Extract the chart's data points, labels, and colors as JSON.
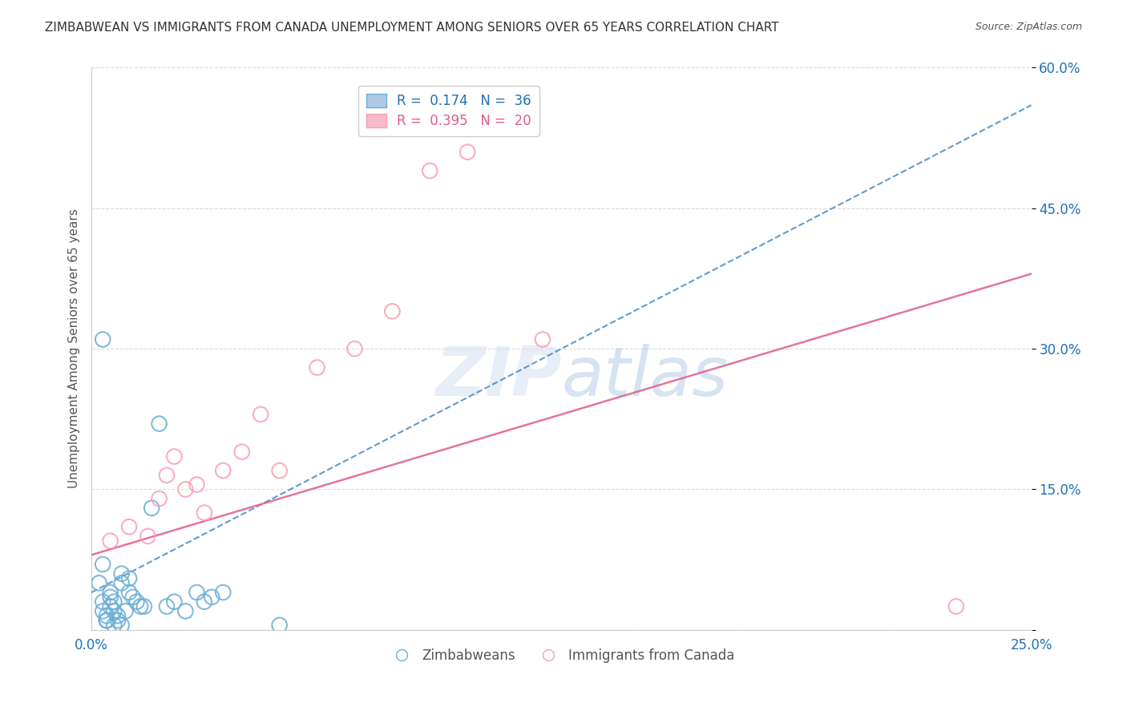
{
  "title": "ZIMBABWEAN VS IMMIGRANTS FROM CANADA UNEMPLOYMENT AMONG SENIORS OVER 65 YEARS CORRELATION CHART",
  "source": "Source: ZipAtlas.com",
  "xlabel": "",
  "ylabel": "Unemployment Among Seniors over 65 years",
  "xlim": [
    0.0,
    0.25
  ],
  "ylim": [
    0.0,
    0.6
  ],
  "xticks": [
    0.0,
    0.05,
    0.1,
    0.15,
    0.2,
    0.25
  ],
  "yticks": [
    0.0,
    0.15,
    0.3,
    0.45,
    0.6
  ],
  "xticklabels": [
    "0.0%",
    "",
    "",
    "",
    "",
    "25.0%"
  ],
  "yticklabels": [
    "",
    "15.0%",
    "30.0%",
    "45.0%",
    "60.0%"
  ],
  "legend1_label": "R =  0.174   N =  36",
  "legend2_label": "R =  0.395   N =  20",
  "R1": 0.174,
  "N1": 36,
  "R2": 0.395,
  "N2": 20,
  "blue_color": "#6baed6",
  "pink_color": "#fa9fb5",
  "blue_line_color": "#2171b5",
  "pink_line_color": "#e05c8a",
  "dashed_line_color": "#aaaaaa",
  "watermark": "ZIPatlas",
  "blue_scatter_x": [
    0.002,
    0.003,
    0.003,
    0.004,
    0.004,
    0.005,
    0.005,
    0.005,
    0.006,
    0.006,
    0.007,
    0.007,
    0.008,
    0.008,
    0.009,
    0.01,
    0.01,
    0.011,
    0.012,
    0.013,
    0.014,
    0.016,
    0.018,
    0.02,
    0.022,
    0.025,
    0.028,
    0.03,
    0.032,
    0.035,
    0.003,
    0.004,
    0.006,
    0.05,
    0.008,
    0.003
  ],
  "blue_scatter_y": [
    0.05,
    0.02,
    0.03,
    0.01,
    0.015,
    0.025,
    0.035,
    0.04,
    0.02,
    0.03,
    0.01,
    0.015,
    0.05,
    0.06,
    0.02,
    0.04,
    0.055,
    0.035,
    0.03,
    0.025,
    0.025,
    0.13,
    0.22,
    0.025,
    0.03,
    0.02,
    0.04,
    0.03,
    0.035,
    0.04,
    0.07,
    0.01,
    0.005,
    0.005,
    0.005,
    0.31
  ],
  "pink_scatter_x": [
    0.005,
    0.01,
    0.015,
    0.018,
    0.02,
    0.022,
    0.025,
    0.028,
    0.03,
    0.035,
    0.04,
    0.045,
    0.05,
    0.06,
    0.07,
    0.08,
    0.09,
    0.1,
    0.12,
    0.23
  ],
  "pink_scatter_y": [
    0.095,
    0.11,
    0.1,
    0.14,
    0.165,
    0.185,
    0.15,
    0.155,
    0.125,
    0.17,
    0.19,
    0.23,
    0.17,
    0.28,
    0.3,
    0.34,
    0.49,
    0.51,
    0.31,
    0.025
  ]
}
